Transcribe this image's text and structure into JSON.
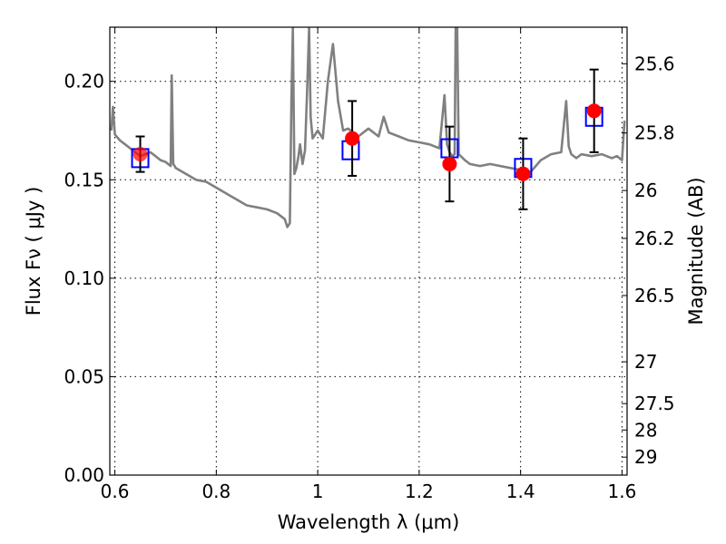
{
  "chart_data": {
    "type": "scatter",
    "title": "",
    "xlabel": "Wavelength  λ (μm)",
    "ylabel": "Flux  Fν  ( μJy )",
    "y2label": "Magnitude (AB)",
    "xlim": [
      0.59,
      1.61
    ],
    "ylim": [
      0.0,
      0.2275
    ],
    "grid": true,
    "x_ticks": [
      0.6,
      0.8,
      1.0,
      1.2,
      1.4,
      1.6
    ],
    "x_tick_labels": [
      "0.6",
      "0.8",
      "1",
      "1.2",
      "1.4",
      "1.6"
    ],
    "y_ticks": [
      0.0,
      0.05,
      0.1,
      0.15,
      0.2
    ],
    "y_tick_labels": [
      "0.00",
      "0.05",
      "0.10",
      "0.15",
      "0.20"
    ],
    "y2_ticks": [
      25.6,
      25.8,
      26,
      26.2,
      26.5,
      27,
      27.5,
      28,
      29
    ],
    "y2_tick_labels": [
      "25.6",
      "25.8",
      "26",
      "26.2",
      "26.5",
      "27",
      "27.5",
      "28",
      "29"
    ],
    "series": [
      {
        "kind": "line",
        "color": "#808080",
        "x": [
          0.593,
          0.596,
          0.6,
          0.61,
          0.62,
          0.63,
          0.64,
          0.65,
          0.66,
          0.67,
          0.68,
          0.69,
          0.7,
          0.71,
          0.712,
          0.715,
          0.718,
          0.72,
          0.74,
          0.76,
          0.78,
          0.8,
          0.82,
          0.84,
          0.86,
          0.88,
          0.9,
          0.92,
          0.935,
          0.94,
          0.945,
          0.948,
          0.951,
          0.954,
          0.958,
          0.962,
          0.965,
          0.97,
          0.975,
          0.979,
          0.983,
          0.986,
          0.99,
          1.0,
          1.01,
          1.02,
          1.03,
          1.04,
          1.05,
          1.06,
          1.07,
          1.08,
          1.1,
          1.12,
          1.13,
          1.14,
          1.16,
          1.18,
          1.2,
          1.22,
          1.24,
          1.25,
          1.255,
          1.26,
          1.265,
          1.27,
          1.272,
          1.275,
          1.278,
          1.282,
          1.29,
          1.3,
          1.32,
          1.34,
          1.36,
          1.38,
          1.4,
          1.42,
          1.44,
          1.46,
          1.48,
          1.49,
          1.495,
          1.5,
          1.51,
          1.52,
          1.54,
          1.56,
          1.58,
          1.59,
          1.6,
          1.605
        ],
        "y": [
          0.175,
          0.187,
          0.173,
          0.17,
          0.168,
          0.166,
          0.164,
          0.162,
          0.163,
          0.164,
          0.162,
          0.16,
          0.159,
          0.157,
          0.203,
          0.158,
          0.157,
          0.156,
          0.153,
          0.15,
          0.149,
          0.146,
          0.143,
          0.14,
          0.137,
          0.136,
          0.135,
          0.133,
          0.13,
          0.126,
          0.128,
          0.19,
          0.227,
          0.153,
          0.156,
          0.162,
          0.168,
          0.158,
          0.165,
          0.195,
          0.227,
          0.182,
          0.171,
          0.175,
          0.171,
          0.2,
          0.219,
          0.19,
          0.175,
          0.176,
          0.174,
          0.172,
          0.176,
          0.172,
          0.182,
          0.174,
          0.172,
          0.17,
          0.169,
          0.168,
          0.166,
          0.193,
          0.168,
          0.164,
          0.162,
          0.163,
          0.227,
          0.227,
          0.163,
          0.162,
          0.16,
          0.158,
          0.157,
          0.158,
          0.157,
          0.156,
          0.155,
          0.154,
          0.16,
          0.163,
          0.164,
          0.19,
          0.167,
          0.163,
          0.161,
          0.163,
          0.162,
          0.163,
          0.161,
          0.162,
          0.16,
          0.18
        ]
      },
      {
        "kind": "markers",
        "marker": "open-square",
        "color": "#0000ff",
        "x": [
          0.65,
          1.065,
          1.26,
          1.405,
          1.545
        ],
        "y": [
          0.161,
          0.165,
          0.166,
          0.156,
          0.182
        ]
      },
      {
        "kind": "markers",
        "marker": "filled-circle",
        "color": "#ff0000",
        "x": [
          0.65,
          1.068,
          1.26,
          1.405,
          1.545
        ],
        "y": [
          0.163,
          0.171,
          0.158,
          0.153,
          0.185
        ],
        "yerr": [
          0.009,
          0.019,
          0.019,
          0.018,
          0.021
        ]
      }
    ]
  }
}
